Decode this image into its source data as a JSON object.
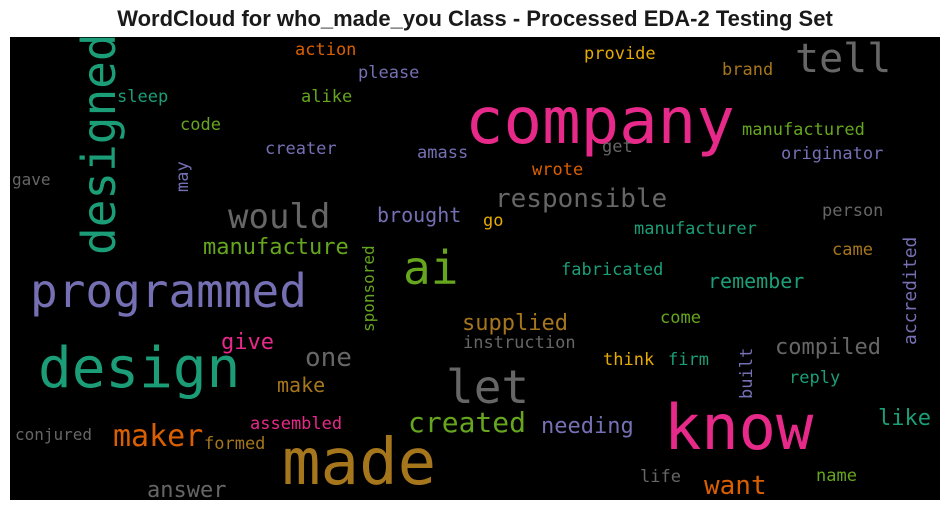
{
  "chart_data": {
    "type": "wordcloud",
    "title": "WordCloud for who_made_you Class - Processed EDA-2 Testing Set",
    "background": "#000000",
    "palette": {
      "magenta": "#e7298a",
      "olive": "#a6761d",
      "green": "#66a61e",
      "teal": "#1b9e77",
      "purple": "#7570b3",
      "gray": "#666666",
      "orange": "#d95f02",
      "yellow": "#e6ab02"
    },
    "words": [
      {
        "text": "company",
        "size": 64,
        "color": "#e7298a",
        "vertical": false
      },
      {
        "text": "made",
        "size": 64,
        "color": "#a6761d",
        "vertical": false
      },
      {
        "text": "know",
        "size": 62,
        "color": "#e7298a",
        "vertical": false
      },
      {
        "text": "design",
        "size": 56,
        "color": "#1b9e77",
        "vertical": false
      },
      {
        "text": "programmed",
        "size": 46,
        "color": "#7570b3",
        "vertical": false
      },
      {
        "text": "designed",
        "size": 46,
        "color": "#1b9e77",
        "vertical": true
      },
      {
        "text": "let",
        "size": 46,
        "color": "#666666",
        "vertical": false
      },
      {
        "text": "ai",
        "size": 46,
        "color": "#66a61e",
        "vertical": false
      },
      {
        "text": "tell",
        "size": 40,
        "color": "#666666",
        "vertical": false
      },
      {
        "text": "would",
        "size": 34,
        "color": "#666666",
        "vertical": false
      },
      {
        "text": "maker",
        "size": 30,
        "color": "#d95f02",
        "vertical": false
      },
      {
        "text": "created",
        "size": 28,
        "color": "#66a61e",
        "vertical": false
      },
      {
        "text": "responsible",
        "size": 26,
        "color": "#666666",
        "vertical": false
      },
      {
        "text": "one",
        "size": 26,
        "color": "#666666",
        "vertical": false
      },
      {
        "text": "want",
        "size": 26,
        "color": "#d95f02",
        "vertical": false
      },
      {
        "text": "answer",
        "size": 22,
        "color": "#666666",
        "vertical": false
      },
      {
        "text": "manufacture",
        "size": 22,
        "color": "#66a61e",
        "vertical": false
      },
      {
        "text": "supplied",
        "size": 22,
        "color": "#a6761d",
        "vertical": false
      },
      {
        "text": "compiled",
        "size": 22,
        "color": "#666666",
        "vertical": false
      },
      {
        "text": "needing",
        "size": 22,
        "color": "#7570b3",
        "vertical": false
      },
      {
        "text": "give",
        "size": 22,
        "color": "#e7298a",
        "vertical": false
      },
      {
        "text": "like",
        "size": 22,
        "color": "#1b9e77",
        "vertical": false
      },
      {
        "text": "remember",
        "size": 20,
        "color": "#1b9e77",
        "vertical": false
      },
      {
        "text": "brought",
        "size": 20,
        "color": "#7570b3",
        "vertical": false
      },
      {
        "text": "make",
        "size": 20,
        "color": "#a6761d",
        "vertical": false
      },
      {
        "text": "accredited",
        "size": 18,
        "color": "#7570b3",
        "vertical": true
      },
      {
        "text": "manufactured",
        "size": 17,
        "color": "#66a61e",
        "vertical": false
      },
      {
        "text": "originator",
        "size": 17,
        "color": "#7570b3",
        "vertical": false
      },
      {
        "text": "manufacturer",
        "size": 17,
        "color": "#1b9e77",
        "vertical": false
      },
      {
        "text": "fabricated",
        "size": 17,
        "color": "#1b9e77",
        "vertical": false
      },
      {
        "text": "instruction",
        "size": 17,
        "color": "#666666",
        "vertical": false
      },
      {
        "text": "assembled",
        "size": 17,
        "color": "#e7298a",
        "vertical": false
      },
      {
        "text": "formed",
        "size": 17,
        "color": "#a6761d",
        "vertical": false
      },
      {
        "text": "conjured",
        "size": 16,
        "color": "#666666",
        "vertical": false
      },
      {
        "text": "provide",
        "size": 17,
        "color": "#e6ab02",
        "vertical": false
      },
      {
        "text": "brand",
        "size": 17,
        "color": "#a6761d",
        "vertical": false
      },
      {
        "text": "action",
        "size": 17,
        "color": "#d95f02",
        "vertical": false
      },
      {
        "text": "please",
        "size": 17,
        "color": "#7570b3",
        "vertical": false
      },
      {
        "text": "alike",
        "size": 17,
        "color": "#66a61e",
        "vertical": false
      },
      {
        "text": "sleep",
        "size": 17,
        "color": "#1b9e77",
        "vertical": false
      },
      {
        "text": "code",
        "size": 17,
        "color": "#66a61e",
        "vertical": false
      },
      {
        "text": "creater",
        "size": 17,
        "color": "#7570b3",
        "vertical": false
      },
      {
        "text": "amass",
        "size": 17,
        "color": "#7570b3",
        "vertical": false
      },
      {
        "text": "get",
        "size": 17,
        "color": "#666666",
        "vertical": false
      },
      {
        "text": "wrote",
        "size": 17,
        "color": "#d95f02",
        "vertical": false
      },
      {
        "text": "may",
        "size": 17,
        "color": "#7570b3",
        "vertical": true
      },
      {
        "text": "gave",
        "size": 16,
        "color": "#666666",
        "vertical": false
      },
      {
        "text": "person",
        "size": 17,
        "color": "#666666",
        "vertical": false
      },
      {
        "text": "came",
        "size": 17,
        "color": "#a6761d",
        "vertical": false
      },
      {
        "text": "go",
        "size": 17,
        "color": "#e6ab02",
        "vertical": false
      },
      {
        "text": "sponsored",
        "size": 16,
        "color": "#66a61e",
        "vertical": true
      },
      {
        "text": "come",
        "size": 17,
        "color": "#66a61e",
        "vertical": false
      },
      {
        "text": "think",
        "size": 17,
        "color": "#e6ab02",
        "vertical": false
      },
      {
        "text": "firm",
        "size": 17,
        "color": "#1b9e77",
        "vertical": false
      },
      {
        "text": "built",
        "size": 17,
        "color": "#7570b3",
        "vertical": true
      },
      {
        "text": "reply",
        "size": 17,
        "color": "#1b9e77",
        "vertical": false
      },
      {
        "text": "life",
        "size": 17,
        "color": "#666666",
        "vertical": false
      },
      {
        "text": "name",
        "size": 17,
        "color": "#66a61e",
        "vertical": false
      }
    ]
  }
}
